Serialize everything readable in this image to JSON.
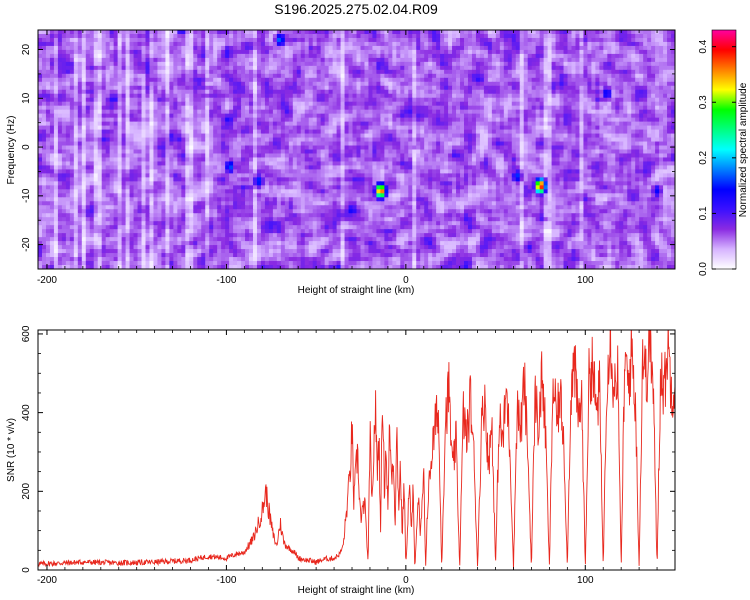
{
  "title": "S196.2025.275.02.04.R09",
  "chart_data": [
    {
      "type": "heatmap",
      "xlabel": "Height of straight line (km)",
      "ylabel": "Frequency (Hz)",
      "xlim": [
        -205,
        150
      ],
      "ylim": [
        -25,
        24
      ],
      "x_ticks": [
        -200,
        -100,
        0,
        100
      ],
      "y_ticks": [
        -20,
        -10,
        0,
        10,
        20
      ],
      "colorbar": {
        "label": "Normalized spectral amplitude",
        "range": [
          0,
          0.43
        ],
        "ticks": [
          0,
          0.1,
          0.2,
          0.3,
          0.4
        ],
        "tick_labels": [
          "0.0",
          "0.1",
          "0.2",
          "0.3",
          "0.4"
        ],
        "colormap": [
          "#ffffff",
          "#d6b3ff",
          "#8a2be2",
          "#3a10ff",
          "#0000ff",
          "#0080ff",
          "#00ffff",
          "#00ff80",
          "#00ff00",
          "#ffff00",
          "#ff8000",
          "#ff0000",
          "#ff00a0"
        ]
      },
      "peaks": [
        {
          "x": 75,
          "y": -8,
          "value": 0.41
        },
        {
          "x": -14,
          "y": -9,
          "value": 0.39
        },
        {
          "x": -98,
          "y": -4,
          "value": 0.17
        },
        {
          "x": -82,
          "y": -7,
          "value": 0.16
        },
        {
          "x": -70,
          "y": 22,
          "value": 0.18
        },
        {
          "x": 62,
          "y": -6,
          "value": 0.16
        },
        {
          "x": 112,
          "y": 11,
          "value": 0.15
        },
        {
          "x": 140,
          "y": -9,
          "value": 0.14
        },
        {
          "x": -30,
          "y": -13,
          "value": 0.14
        },
        {
          "x": -125,
          "y": 24,
          "value": 0.13
        }
      ],
      "background_level": 0.07
    },
    {
      "type": "line",
      "xlabel": "Height of straight line (km)",
      "ylabel": "SNR (10 * v/v)",
      "xlim": [
        -205,
        150
      ],
      "ylim": [
        0,
        610
      ],
      "x_ticks": [
        -200,
        -100,
        0,
        100
      ],
      "y_ticks": [
        0,
        200,
        400,
        600
      ],
      "color": "#e8281e",
      "series": [
        {
          "x": [
            -205,
            -180,
            -160,
            -140,
            -120,
            -110,
            -100,
            -95,
            -90,
            -85,
            -82,
            -80,
            -78,
            -76,
            -74,
            -72,
            -70,
            -68,
            -65,
            -62,
            -60,
            -55,
            -50,
            -45,
            -40,
            -37,
            -35,
            -33,
            -31,
            -30,
            -29,
            -27,
            -25,
            -23,
            -21,
            -20,
            -19,
            -17,
            -16,
            -15,
            -14,
            -13,
            -12,
            -11,
            -10,
            -9,
            -8,
            -7,
            -6,
            -5,
            -4,
            -3,
            -2,
            -1,
            0,
            1,
            2,
            3,
            4,
            5,
            6,
            7,
            8,
            9,
            10,
            11,
            12,
            14,
            16,
            18,
            20,
            22,
            24,
            26,
            28,
            30,
            32,
            34,
            36,
            38,
            40,
            42,
            44,
            46,
            48,
            50,
            52,
            54,
            56,
            58,
            60,
            62,
            64,
            66,
            68,
            70,
            72,
            74,
            76,
            78,
            80,
            82,
            84,
            86,
            88,
            90,
            92,
            94,
            96,
            98,
            100,
            102,
            104,
            106,
            108,
            110,
            112,
            114,
            116,
            118,
            120,
            122,
            124,
            126,
            128,
            130,
            132,
            134,
            136,
            138,
            140,
            142,
            144,
            146,
            148,
            150
          ],
          "y": [
            15,
            20,
            18,
            20,
            25,
            35,
            30,
            40,
            45,
            80,
            120,
            150,
            200,
            140,
            90,
            60,
            120,
            70,
            55,
            45,
            30,
            25,
            20,
            28,
            30,
            40,
            60,
            150,
            250,
            360,
            170,
            300,
            120,
            180,
            10,
            360,
            150,
            420,
            250,
            340,
            100,
            480,
            200,
            320,
            150,
            380,
            230,
            300,
            120,
            350,
            160,
            270,
            80,
            240,
            5,
            120,
            230,
            90,
            200,
            3,
            110,
            190,
            80,
            160,
            230,
            8,
            150,
            280,
            350,
            420,
            5,
            380,
            460,
            250,
            330,
            5,
            400,
            330,
            440,
            280,
            6,
            350,
            450,
            260,
            380,
            5,
            390,
            320,
            460,
            310,
            5,
            420,
            350,
            480,
            300,
            5,
            450,
            360,
            500,
            330,
            5,
            480,
            380,
            440,
            340,
            5,
            460,
            520,
            380,
            440,
            5,
            480,
            530,
            400,
            460,
            5,
            500,
            610,
            450,
            520,
            5,
            530,
            470,
            560,
            420,
            5,
            560,
            480,
            600,
            440,
            5,
            520,
            450,
            580,
            460,
            480
          ]
        }
      ]
    }
  ]
}
